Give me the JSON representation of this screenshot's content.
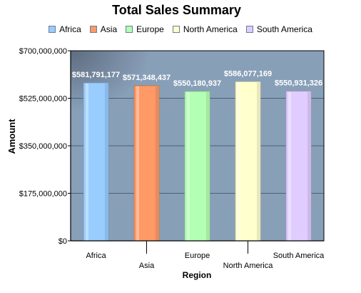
{
  "chart_data": {
    "type": "bar",
    "title": "Total Sales Summary",
    "xlabel": "Region",
    "ylabel": "Amount",
    "categories": [
      "Africa",
      "Asia",
      "Europe",
      "North America",
      "South America"
    ],
    "values": [
      581791177,
      571348437,
      550180937,
      586077169,
      550931326
    ],
    "value_labels": [
      "$581,791,177",
      "$571,348,437",
      "$550,180,937",
      "$586,077,169",
      "$550,931,326"
    ],
    "colors": [
      "#99ccff",
      "#ff9966",
      "#b3ffb3",
      "#ffffcc",
      "#e0ccff"
    ],
    "ylim": [
      0,
      700000000
    ],
    "yticks": [
      0,
      175000000,
      350000000,
      525000000,
      700000000
    ],
    "ytick_labels": [
      "$0",
      "$175,000,000",
      "$350,000,000",
      "$525,000,000",
      "$700,000,000"
    ],
    "legend": [
      "Africa",
      "Asia",
      "Europe",
      "North America",
      "South America"
    ],
    "legend_position": "top",
    "grid": true,
    "plot_background": "#889fb8"
  }
}
